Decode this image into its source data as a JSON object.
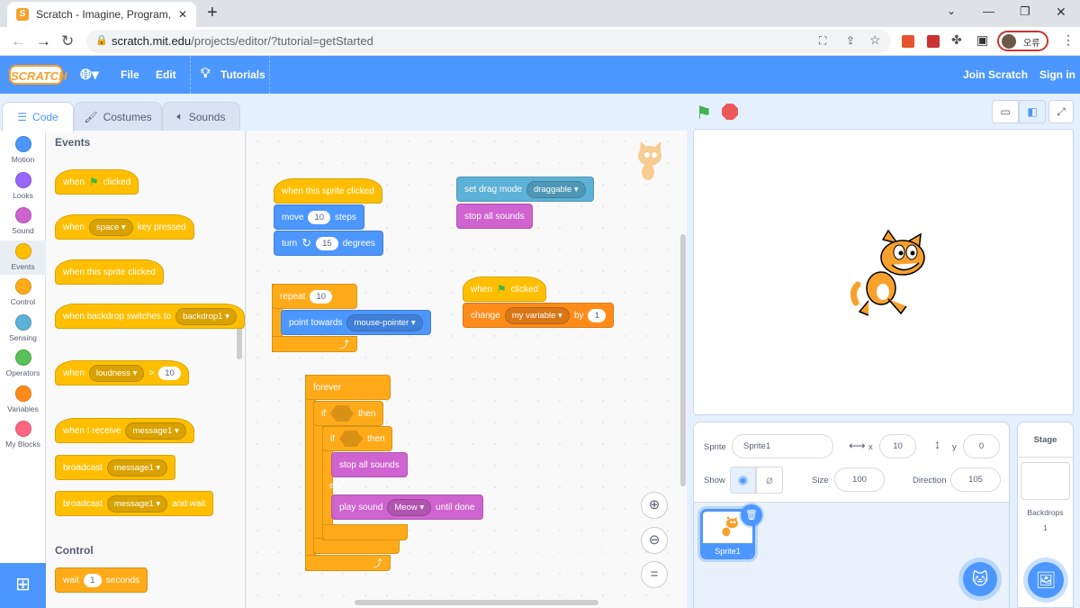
{
  "browser": {
    "tab_title": "Scratch - Imagine, Program, Sha",
    "url_host": "scratch.mit.edu",
    "url_path": "/projects/editor/?tutorial=getStarted",
    "profile_label": "오류"
  },
  "menu": {
    "logo": "SCRATCH",
    "file": "File",
    "edit": "Edit",
    "tutorials": "Tutorials",
    "join": "Join Scratch",
    "signin": "Sign in"
  },
  "editor_tabs": [
    {
      "label": "Code",
      "active": true
    },
    {
      "label": "Costumes"
    },
    {
      "label": "Sounds"
    }
  ],
  "categories": [
    {
      "label": "Motion",
      "color": "#4C97FF"
    },
    {
      "label": "Looks",
      "color": "#9966FF"
    },
    {
      "label": "Sound",
      "color": "#CF63CF"
    },
    {
      "label": "Events",
      "color": "#FFBF00",
      "selected": true
    },
    {
      "label": "Control",
      "color": "#FFAB19"
    },
    {
      "label": "Sensing",
      "color": "#5CB1D6"
    },
    {
      "label": "Operators",
      "color": "#59C059"
    },
    {
      "label": "Variables",
      "color": "#FF8C1A"
    },
    {
      "label": "My Blocks",
      "color": "#FF6680"
    }
  ],
  "colors": {
    "events": "#FFBF00",
    "motion": "#4C97FF",
    "control": "#FFAB19",
    "looks": "#9966FF",
    "sound": "#CF63CF",
    "sensing": "#5CB1D6",
    "operators": "#59C059",
    "variables": "#FF8C1A",
    "accent": "#4C97FF"
  },
  "palette": {
    "heading_events": "Events",
    "heading_control": "Control",
    "blocks": [
      {
        "cat": "events",
        "hat": true,
        "parts": [
          "when",
          {
            "flag": true
          },
          "clicked"
        ]
      },
      {
        "cat": "events",
        "hat": true,
        "parts": [
          "when",
          {
            "dd": "space"
          },
          "key pressed"
        ]
      },
      {
        "cat": "events",
        "hat": true,
        "parts": [
          "when this sprite clicked"
        ]
      },
      {
        "cat": "events",
        "hat": true,
        "parts": [
          "when backdrop switches to",
          {
            "dd": "backdrop1"
          }
        ]
      },
      {
        "cat": "events",
        "hat": true,
        "parts": [
          "when",
          {
            "dd": "loudness"
          },
          ">",
          {
            "inp": "10"
          }
        ]
      },
      {
        "cat": "events",
        "hat": true,
        "parts": [
          "when I receive",
          {
            "dd": "message1"
          }
        ]
      },
      {
        "cat": "events",
        "parts": [
          "broadcast",
          {
            "dd": "message1"
          }
        ]
      },
      {
        "cat": "events",
        "parts": [
          "broadcast",
          {
            "dd": "message1"
          },
          "and wait"
        ]
      },
      {
        "cat": "control",
        "parts": [
          "wait",
          {
            "inp": "1"
          },
          "seconds"
        ]
      }
    ]
  },
  "workspace": {
    "blocks": [
      {
        "cat": "events",
        "hat": true,
        "parts": [
          "when this sprite clicked"
        ]
      },
      {
        "cat": "motion",
        "parts": [
          "move",
          {
            "inp": "10"
          },
          "steps"
        ]
      },
      {
        "cat": "motion",
        "parts": [
          "turn",
          {
            "icon": "↻"
          },
          {
            "inp": "15"
          },
          "degrees"
        ]
      },
      {
        "cat": "sensing",
        "parts": [
          "set drag mode",
          {
            "dd": "draggable"
          }
        ]
      },
      {
        "cat": "sound",
        "parts": [
          "stop all sounds"
        ]
      },
      {
        "cat": "control",
        "parts": [
          "repeat",
          {
            "inp": "10"
          }
        ]
      },
      {
        "cat": "motion",
        "parts": [
          "point towards",
          {
            "dd": "mouse-pointer"
          }
        ]
      },
      {
        "cat": "events",
        "hat": true,
        "parts": [
          "when",
          {
            "flag": true
          },
          "clicked"
        ]
      },
      {
        "cat": "variables",
        "parts": [
          "change",
          {
            "dd": "my variable"
          },
          "by",
          {
            "inp": "1"
          }
        ]
      },
      {
        "cat": "control",
        "parts": [
          "forever"
        ]
      },
      {
        "cat": "control",
        "parts": [
          "if",
          {
            "hex": true
          },
          "then"
        ]
      },
      {
        "cat": "control",
        "parts": [
          "if",
          {
            "hex": true
          },
          "then"
        ]
      },
      {
        "cat": "sound",
        "parts": [
          "stop all sounds"
        ]
      },
      {
        "cat": "control",
        "parts": [
          "else"
        ]
      },
      {
        "cat": "sound",
        "parts": [
          "play sound",
          {
            "dd": "Meow"
          },
          "until done"
        ]
      }
    ]
  },
  "sprite": {
    "label_sprite": "Sprite",
    "name": "Sprite1",
    "label_x": "x",
    "x": "10",
    "label_y": "y",
    "y": "0",
    "label_show": "Show",
    "label_size": "Size",
    "size": "100",
    "label_direction": "Direction",
    "direction": "105",
    "visible": true
  },
  "sprite_list": [
    {
      "name": "Sprite1",
      "selected": true
    }
  ],
  "stage_panel": {
    "title": "Stage",
    "backdrops_label": "Backdrops",
    "backdrops_count": "1"
  }
}
